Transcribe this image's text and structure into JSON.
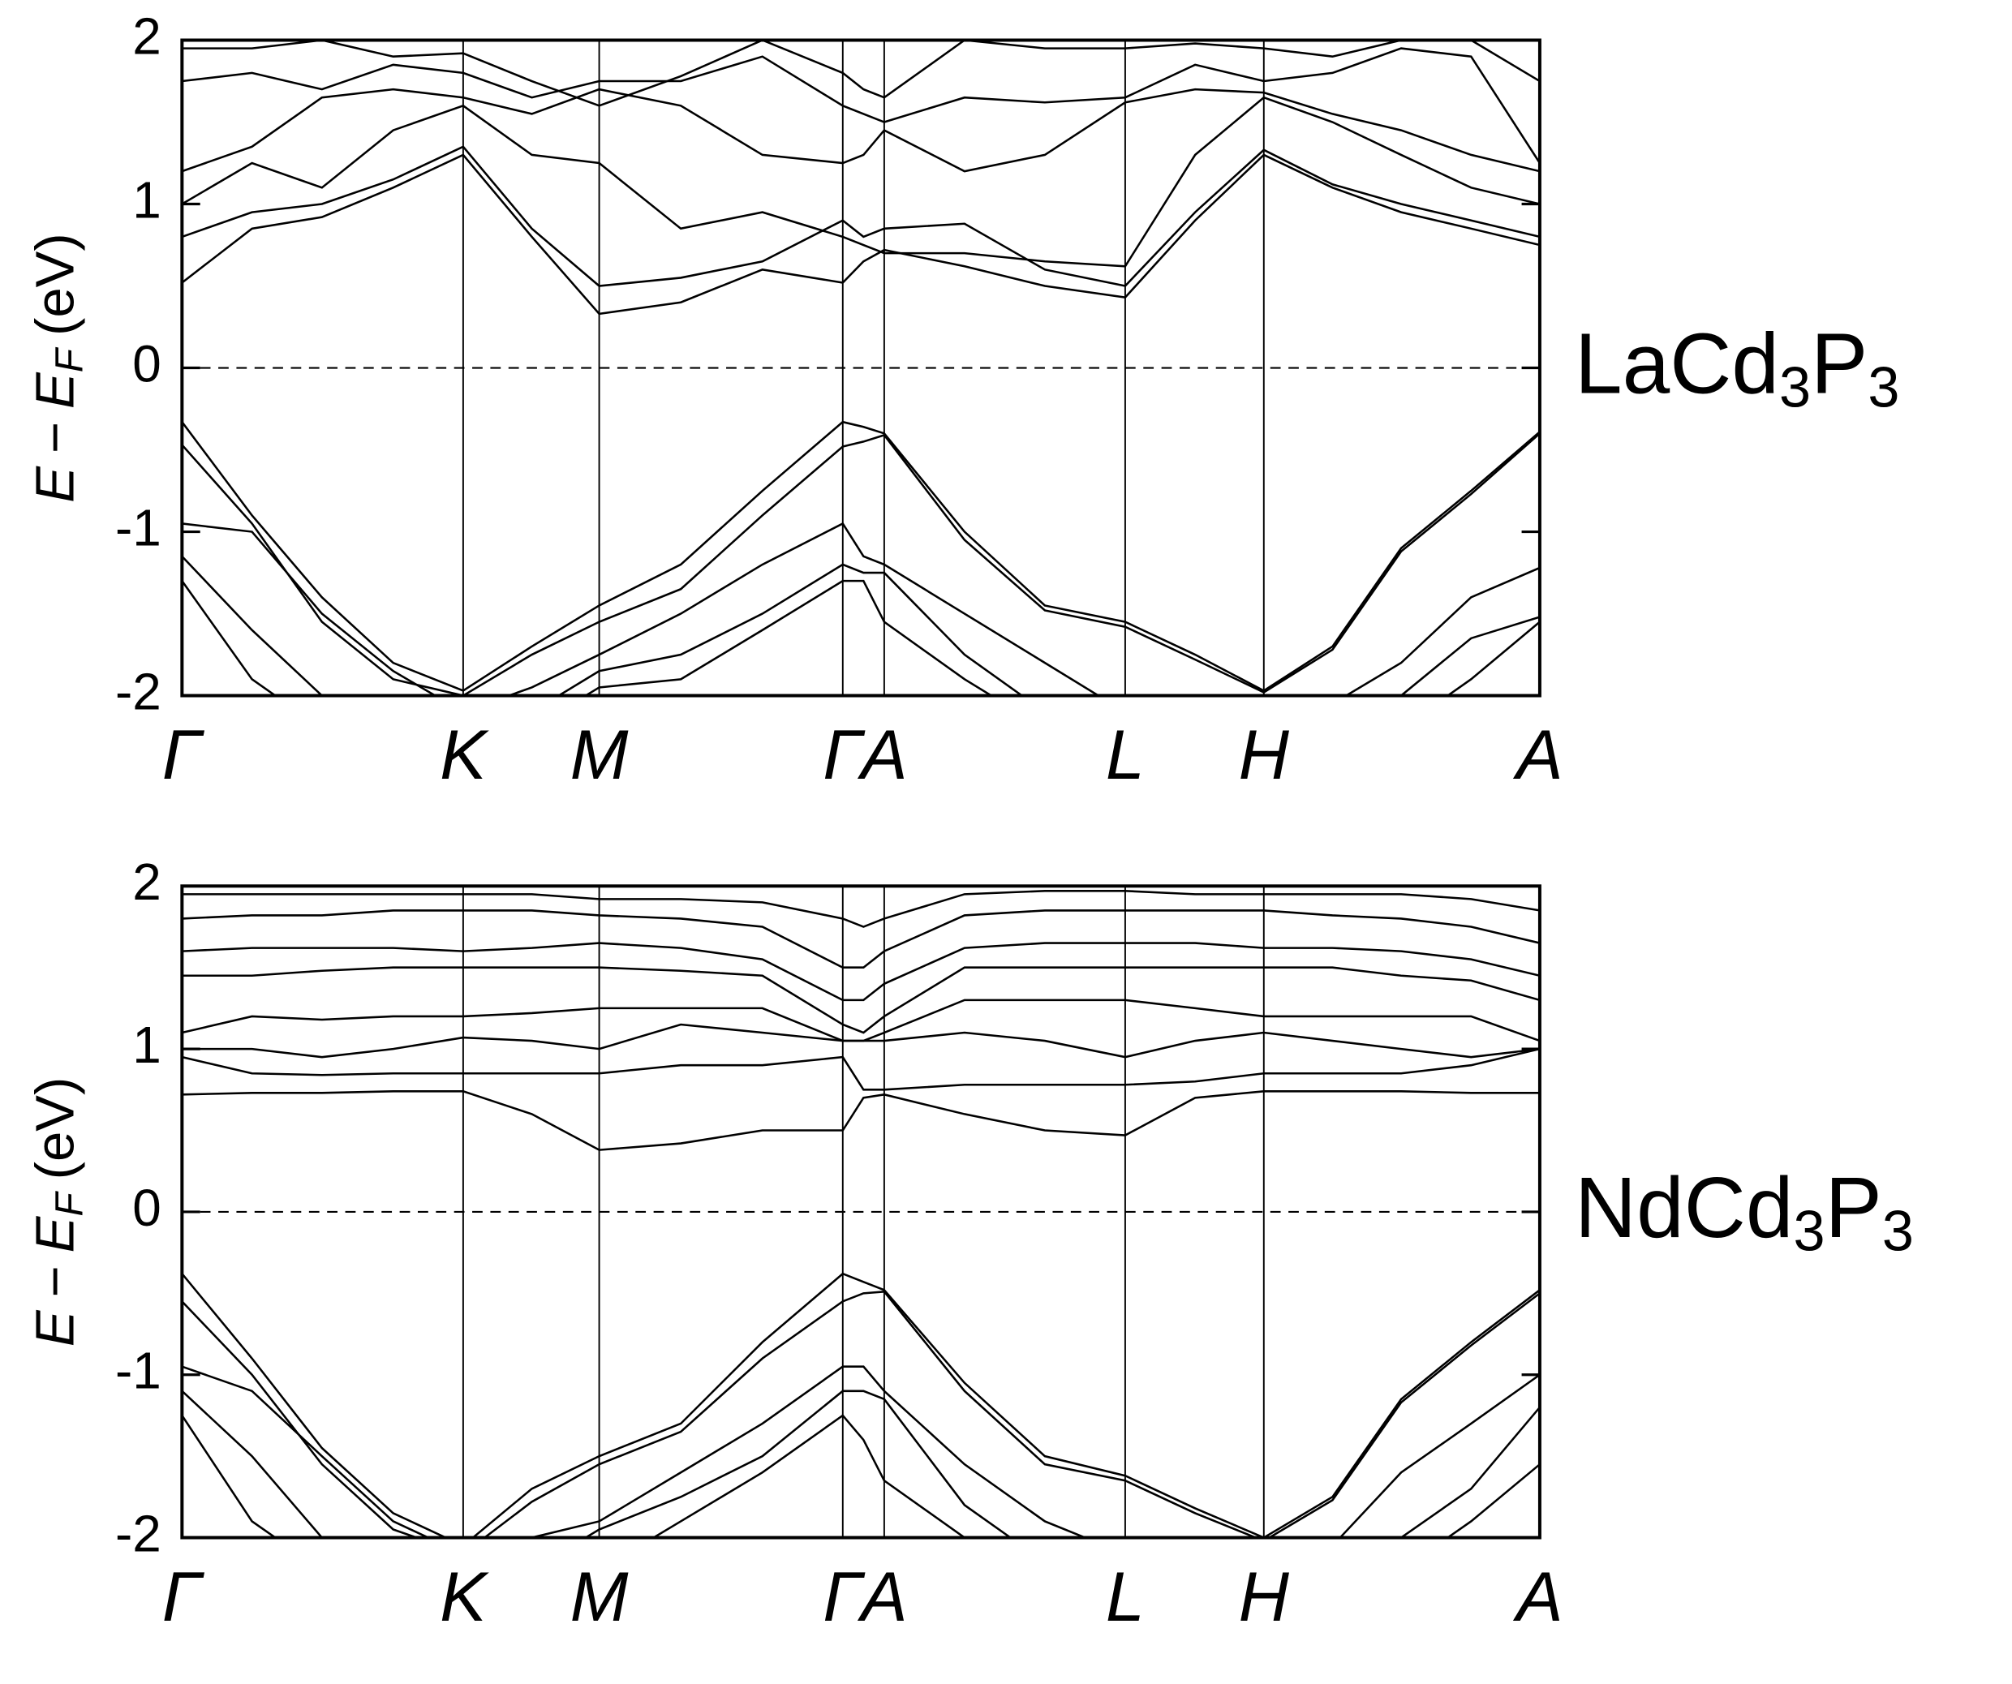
{
  "chart_data": [
    {
      "type": "line",
      "title": [
        "LaCd",
        "3",
        "P",
        "3"
      ],
      "ylabel": [
        "E",
        "−",
        "E",
        "F",
        "(eV)"
      ],
      "x": [
        0,
        0.54,
        1.08,
        1.63,
        2.17,
        2.7,
        3.22,
        3.85,
        4.48,
        5.1,
        5.26,
        5.42,
        6.04,
        6.66,
        7.28,
        7.82,
        8.35,
        8.88,
        9.41,
        9.95,
        10.48
      ],
      "xlim": [
        0,
        10.48
      ],
      "xticks": [
        {
          "value": 0,
          "label": "Γ"
        },
        {
          "value": 2.17,
          "label": "K"
        },
        {
          "value": 3.22,
          "label": "M"
        },
        {
          "value": 5.1,
          "label": "Γ"
        },
        {
          "value": 5.42,
          "label": "A"
        },
        {
          "value": 7.28,
          "label": "L"
        },
        {
          "value": 8.35,
          "label": "H"
        },
        {
          "value": 10.48,
          "label": "A"
        }
      ],
      "ylim": [
        -2,
        2
      ],
      "yticks": [
        -2,
        -1,
        0,
        1,
        2
      ],
      "hlines": [
        0
      ],
      "series": [
        {
          "color": "#000000",
          "values": [
            0.52,
            0.85,
            0.92,
            1.1,
            1.3,
            0.8,
            0.33,
            0.4,
            0.6,
            0.52,
            0.65,
            0.72,
            0.62,
            0.5,
            0.43,
            0.9,
            1.3,
            1.1,
            0.95,
            0.85,
            0.75
          ]
        },
        {
          "color": "#000000",
          "values": [
            0.8,
            0.95,
            1.0,
            1.15,
            1.35,
            0.85,
            0.5,
            0.55,
            0.65,
            0.9,
            0.8,
            0.85,
            0.88,
            0.6,
            0.5,
            0.95,
            1.33,
            1.12,
            1.0,
            0.9,
            0.8
          ]
        },
        {
          "color": "#000000",
          "values": [
            1.0,
            1.25,
            1.1,
            1.45,
            1.6,
            1.3,
            1.25,
            0.85,
            0.95,
            0.8,
            0.75,
            0.7,
            0.7,
            0.65,
            0.62,
            1.3,
            1.65,
            1.5,
            1.3,
            1.1,
            1.0
          ]
        },
        {
          "color": "#000000",
          "values": [
            1.2,
            1.35,
            1.65,
            1.7,
            1.65,
            1.55,
            1.7,
            1.6,
            1.3,
            1.25,
            1.3,
            1.45,
            1.2,
            1.3,
            1.62,
            1.7,
            1.68,
            1.55,
            1.45,
            1.3,
            1.2
          ]
        },
        {
          "color": "#000000",
          "values": [
            1.75,
            1.8,
            1.7,
            1.85,
            1.8,
            1.65,
            1.75,
            1.75,
            1.9,
            1.6,
            1.55,
            1.5,
            1.65,
            1.62,
            1.65,
            1.85,
            1.75,
            1.8,
            1.95,
            1.9,
            1.25
          ]
        },
        {
          "color": "#000000",
          "values": [
            1.95,
            1.95,
            2.0,
            1.9,
            1.92,
            1.75,
            1.6,
            1.78,
            2.0,
            1.8,
            1.7,
            1.65,
            2.0,
            1.95,
            1.95,
            1.98,
            1.95,
            1.9,
            2.0,
            2.0,
            1.75
          ]
        },
        {
          "color": "#000000",
          "values": [
            -0.33,
            -0.9,
            -1.4,
            -1.8,
            -1.97,
            -1.7,
            -1.45,
            -1.2,
            -0.75,
            -0.33,
            -0.36,
            -0.4,
            -1.0,
            -1.45,
            -1.55,
            -1.75,
            -1.97,
            -1.7,
            -1.1,
            -0.75,
            -0.39
          ]
        },
        {
          "color": "#000000",
          "values": [
            -0.47,
            -0.95,
            -1.55,
            -1.9,
            -2.0,
            -1.75,
            -1.55,
            -1.35,
            -0.9,
            -0.48,
            -0.45,
            -0.41,
            -1.05,
            -1.48,
            -1.58,
            -1.78,
            -1.98,
            -1.72,
            -1.12,
            -0.77,
            -0.4
          ]
        },
        {
          "color": "#000000",
          "values": [
            -0.95,
            -1.0,
            -1.5,
            -1.85,
            -2.1,
            -1.95,
            -1.75,
            -1.5,
            -1.2,
            -0.95,
            -1.15,
            -1.2,
            -1.5,
            -1.8,
            -2.1,
            -2.2,
            -2.1,
            -2.05,
            -1.8,
            -1.4,
            -1.22
          ]
        },
        {
          "color": "#000000",
          "values": [
            -1.15,
            -1.6,
            -2.0,
            -2.2,
            -2.2,
            -2.1,
            -1.85,
            -1.75,
            -1.5,
            -1.2,
            -1.25,
            -1.25,
            -1.75,
            -2.1,
            -2.2,
            -2.2,
            -2.2,
            -2.2,
            -2.0,
            -1.65,
            -1.52
          ]
        },
        {
          "color": "#000000",
          "values": [
            -1.3,
            -1.9,
            -2.2,
            -2.2,
            -2.2,
            -2.2,
            -1.95,
            -1.9,
            -1.6,
            -1.3,
            -1.3,
            -1.55,
            -1.9,
            -2.2,
            -2.2,
            -2.2,
            -2.2,
            -2.2,
            -2.2,
            -1.9,
            -1.55
          ]
        }
      ]
    },
    {
      "type": "line",
      "title": [
        "NdCd",
        "3",
        "P",
        "3"
      ],
      "ylabel": [
        "E",
        "−",
        "E",
        "F",
        "(eV)"
      ],
      "x": [
        0,
        0.54,
        1.08,
        1.63,
        2.17,
        2.7,
        3.22,
        3.85,
        4.48,
        5.1,
        5.26,
        5.42,
        6.04,
        6.66,
        7.28,
        7.82,
        8.35,
        8.88,
        9.41,
        9.95,
        10.48
      ],
      "xlim": [
        0,
        10.48
      ],
      "xticks": [
        {
          "value": 0,
          "label": "Γ"
        },
        {
          "value": 2.17,
          "label": "K"
        },
        {
          "value": 3.22,
          "label": "M"
        },
        {
          "value": 5.1,
          "label": "Γ"
        },
        {
          "value": 5.42,
          "label": "A"
        },
        {
          "value": 7.28,
          "label": "L"
        },
        {
          "value": 8.35,
          "label": "H"
        },
        {
          "value": 10.48,
          "label": "A"
        }
      ],
      "ylim": [
        -2,
        2
      ],
      "yticks": [
        -2,
        -1,
        0,
        1,
        2
      ],
      "hlines": [
        0
      ],
      "series": [
        {
          "color": "#000000",
          "values": [
            0.72,
            0.73,
            0.73,
            0.74,
            0.74,
            0.6,
            0.38,
            0.42,
            0.5,
            0.5,
            0.7,
            0.72,
            0.6,
            0.5,
            0.47,
            0.7,
            0.74,
            0.74,
            0.74,
            0.73,
            0.73
          ]
        },
        {
          "color": "#000000",
          "values": [
            0.95,
            0.85,
            0.84,
            0.85,
            0.85,
            0.85,
            0.85,
            0.9,
            0.9,
            0.95,
            0.75,
            0.75,
            0.78,
            0.78,
            0.78,
            0.8,
            0.85,
            0.85,
            0.85,
            0.9,
            1.0
          ]
        },
        {
          "color": "#000000",
          "values": [
            1.0,
            1.0,
            0.95,
            1.0,
            1.07,
            1.05,
            1.0,
            1.15,
            1.1,
            1.05,
            1.05,
            1.05,
            1.1,
            1.05,
            0.95,
            1.05,
            1.1,
            1.05,
            1.0,
            0.95,
            1.0
          ]
        },
        {
          "color": "#000000",
          "values": [
            1.1,
            1.2,
            1.18,
            1.2,
            1.2,
            1.22,
            1.25,
            1.25,
            1.25,
            1.05,
            1.05,
            1.1,
            1.3,
            1.3,
            1.3,
            1.25,
            1.2,
            1.2,
            1.2,
            1.2,
            1.05
          ]
        },
        {
          "color": "#000000",
          "values": [
            1.45,
            1.45,
            1.48,
            1.5,
            1.5,
            1.5,
            1.5,
            1.48,
            1.45,
            1.15,
            1.1,
            1.2,
            1.5,
            1.5,
            1.5,
            1.5,
            1.5,
            1.5,
            1.45,
            1.42,
            1.3
          ]
        },
        {
          "color": "#000000",
          "values": [
            1.6,
            1.62,
            1.62,
            1.62,
            1.6,
            1.62,
            1.65,
            1.62,
            1.55,
            1.3,
            1.3,
            1.4,
            1.62,
            1.65,
            1.65,
            1.65,
            1.62,
            1.62,
            1.6,
            1.55,
            1.45
          ]
        },
        {
          "color": "#000000",
          "values": [
            1.8,
            1.82,
            1.82,
            1.85,
            1.85,
            1.85,
            1.82,
            1.8,
            1.75,
            1.5,
            1.5,
            1.6,
            1.82,
            1.85,
            1.85,
            1.85,
            1.85,
            1.82,
            1.8,
            1.75,
            1.65
          ]
        },
        {
          "color": "#000000",
          "values": [
            1.95,
            1.95,
            1.95,
            1.95,
            1.95,
            1.95,
            1.92,
            1.92,
            1.9,
            1.8,
            1.75,
            1.8,
            1.95,
            1.97,
            1.97,
            1.95,
            1.95,
            1.95,
            1.95,
            1.92,
            1.85
          ]
        },
        {
          "color": "#000000",
          "values": [
            -0.38,
            -0.9,
            -1.45,
            -1.85,
            -2.05,
            -1.7,
            -1.5,
            -1.3,
            -0.8,
            -0.38,
            -0.43,
            -0.48,
            -1.05,
            -1.5,
            -1.62,
            -1.82,
            -2.0,
            -1.75,
            -1.15,
            -0.8,
            -0.48
          ]
        },
        {
          "color": "#000000",
          "values": [
            -0.55,
            -1.0,
            -1.55,
            -1.95,
            -2.1,
            -1.78,
            -1.55,
            -1.35,
            -0.9,
            -0.55,
            -0.5,
            -0.49,
            -1.1,
            -1.55,
            -1.65,
            -1.85,
            -2.02,
            -1.77,
            -1.17,
            -0.82,
            -0.5
          ]
        },
        {
          "color": "#000000",
          "values": [
            -0.95,
            -1.1,
            -1.5,
            -1.9,
            -2.1,
            -2.0,
            -1.9,
            -1.6,
            -1.3,
            -0.95,
            -0.95,
            -1.1,
            -1.55,
            -1.9,
            -2.1,
            -2.2,
            -2.1,
            -2.05,
            -1.6,
            -1.3,
            -1.0
          ]
        },
        {
          "color": "#000000",
          "values": [
            -1.1,
            -1.5,
            -2.0,
            -2.2,
            -2.2,
            -2.2,
            -1.95,
            -1.75,
            -1.5,
            -1.1,
            -1.1,
            -1.15,
            -1.8,
            -2.15,
            -2.2,
            -2.2,
            -2.2,
            -2.2,
            -2.0,
            -1.7,
            -1.2
          ]
        },
        {
          "color": "#000000",
          "values": [
            -1.25,
            -1.9,
            -2.2,
            -2.2,
            -2.2,
            -2.2,
            -2.2,
            -1.9,
            -1.6,
            -1.25,
            -1.4,
            -1.65,
            -2.0,
            -2.2,
            -2.2,
            -2.2,
            -2.2,
            -2.2,
            -2.2,
            -1.9,
            -1.55
          ]
        }
      ]
    }
  ]
}
